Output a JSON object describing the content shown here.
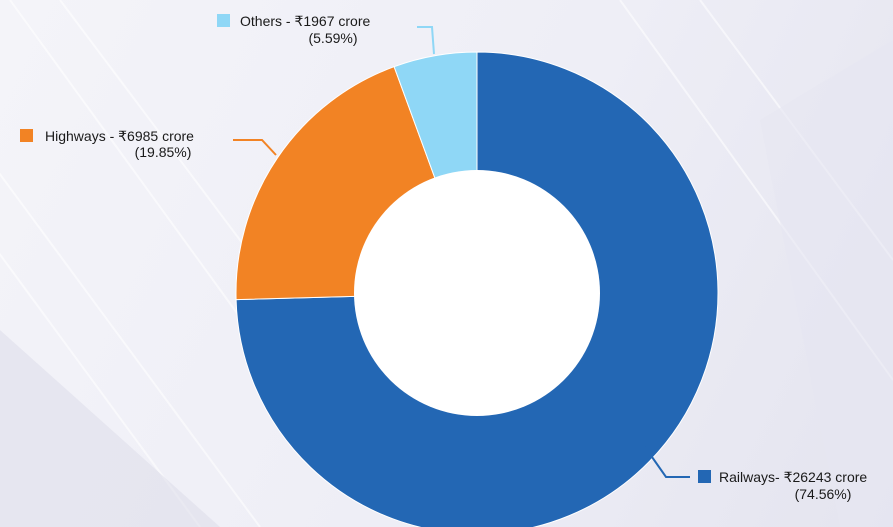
{
  "chart_data": {
    "type": "pie",
    "style": "donut",
    "title": "",
    "slices": [
      {
        "key": "railways",
        "label": "Railways- ₹26243 crore",
        "value": 26243,
        "percent_label": "(74.56%)",
        "percent": 74.56,
        "color": "#2367b4"
      },
      {
        "key": "highways",
        "label": "Highways - ₹6985 crore",
        "value": 6985,
        "percent_label": "(19.85%)",
        "percent": 19.85,
        "color": "#f28324"
      },
      {
        "key": "others",
        "label": "Others - ₹1967 crore",
        "value": 1967,
        "percent_label": "(5.59%)",
        "percent": 5.59,
        "color": "#8fd7f6"
      }
    ],
    "legend": "callout labels beside slices",
    "slice_order": "clockwise from top: others, highways, railways (railways drawn first going counterclockwise)"
  },
  "colors": {
    "background": "#efeff6",
    "hole": "#ffffff"
  }
}
